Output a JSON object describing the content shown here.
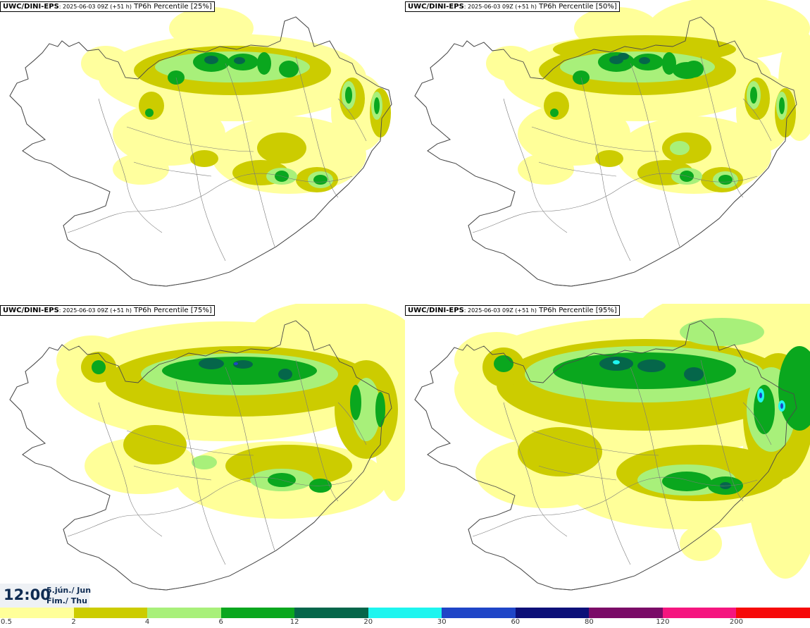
{
  "panels": [
    {
      "model": "UWC/DINI-EPS",
      "run": ": 2025-06-03 09Z (+51 h)",
      "param": "TP6h Percentile [25%]",
      "percentile": 25
    },
    {
      "model": "UWC/DINI-EPS",
      "run": ": 2025-06-03 09Z (+51 h)",
      "param": "TP6h Percentile [50%]",
      "percentile": 50
    },
    {
      "model": "UWC/DINI-EPS",
      "run": ": 2025-06-03 09Z (+51 h)",
      "param": "TP6h Percentile [75%]",
      "percentile": 75
    },
    {
      "model": "UWC/DINI-EPS",
      "run": ": 2025-06-03 09Z (+51 h)",
      "param": "TP6h Percentile [95%]",
      "percentile": 95
    }
  ],
  "valid_time": {
    "time": "12:00",
    "date": "5.jún./ Jun",
    "weekday": "Fim./ Thu"
  },
  "legend": {
    "thresholds": [
      "0.5",
      "2",
      "4",
      "6",
      "12",
      "20",
      "30",
      "60",
      "80",
      "120",
      "200"
    ],
    "colors": [
      "#ffff99",
      "#cccc00",
      "#a8f07a",
      "#0aa71e",
      "#05664a",
      "#1ef5ef",
      "#1f45c7",
      "#0c0f78",
      "#7a0b67",
      "#f5157f",
      "#f60a0a"
    ]
  },
  "colors": {
    "land_outline": "#4a4a4a",
    "background": "#ffffff"
  }
}
